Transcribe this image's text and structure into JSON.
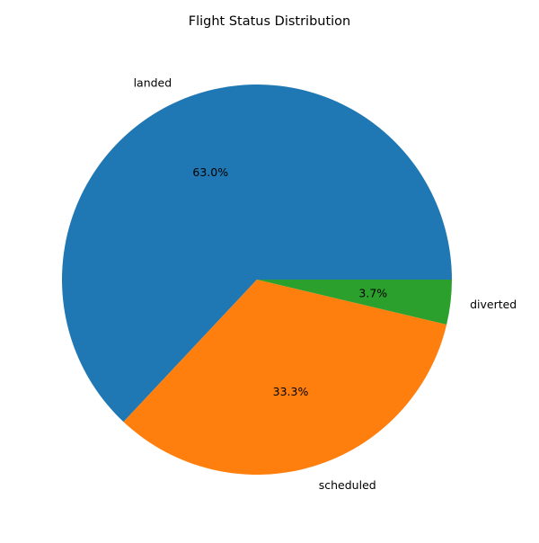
{
  "chart_data": {
    "type": "pie",
    "title": "Flight Status Distribution",
    "slices": [
      {
        "label": "landed",
        "percent_label": "63.0%",
        "value": 63.0,
        "color": "#1f77b4"
      },
      {
        "label": "scheduled",
        "percent_label": "33.3%",
        "value": 33.3,
        "color": "#ff7f0e"
      },
      {
        "label": "diverted",
        "percent_label": "3.7%",
        "value": 3.7,
        "color": "#2ca02c"
      }
    ],
    "start_angle_deg": 0,
    "direction": "counterclockwise",
    "legend": "none"
  }
}
